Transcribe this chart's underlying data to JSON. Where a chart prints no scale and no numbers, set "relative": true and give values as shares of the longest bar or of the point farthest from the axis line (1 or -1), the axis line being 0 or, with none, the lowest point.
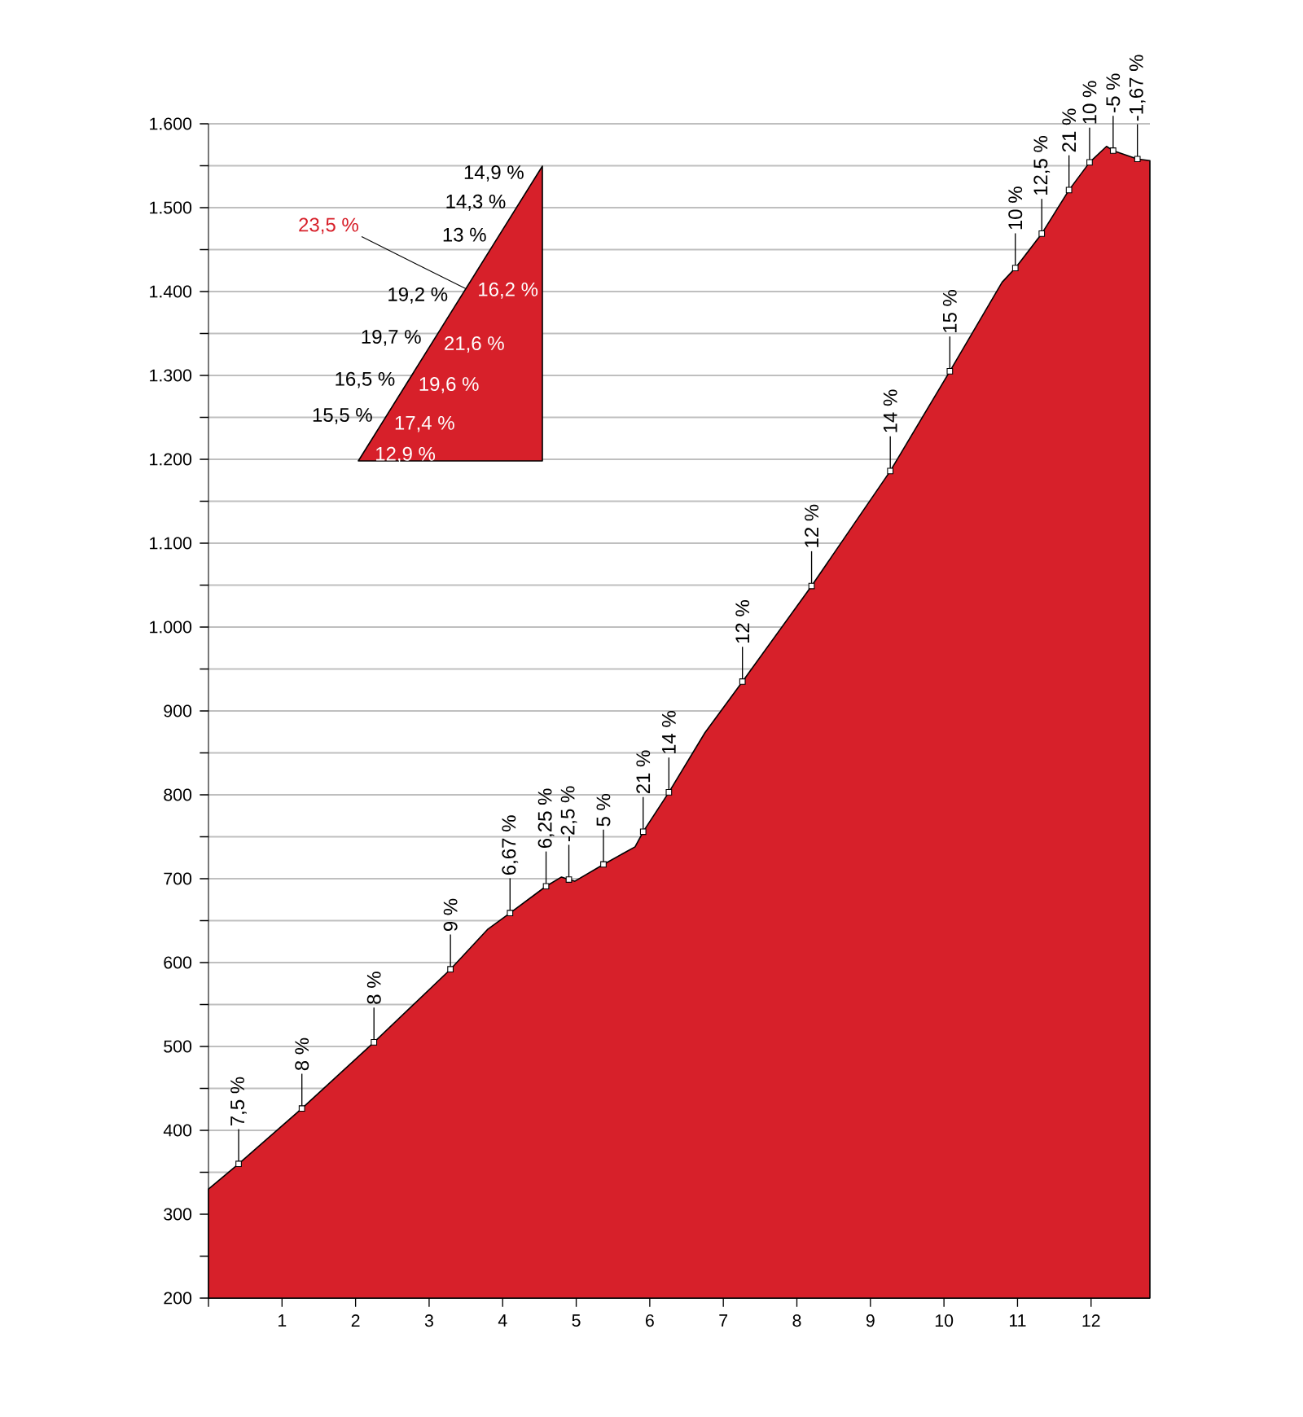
{
  "chart_data": [
    {
      "type": "area",
      "color": "#d7202a",
      "grid": "y",
      "xlim": [
        0,
        12.8
      ],
      "ylim": [
        200,
        1600
      ],
      "xticks": [
        {
          "value": 0,
          "label": null
        },
        1,
        2,
        3,
        4,
        5,
        6,
        7,
        8,
        9,
        10,
        11,
        12
      ],
      "yticks": [
        200,
        {
          "value": 250,
          "label": null
        },
        300,
        {
          "value": 350,
          "label": null
        },
        400,
        {
          "value": 450,
          "label": null
        },
        500,
        {
          "value": 550,
          "label": null
        },
        600,
        {
          "value": 650,
          "label": null
        },
        700,
        {
          "value": 750,
          "label": null
        },
        800,
        {
          "value": 850,
          "label": null
        },
        900,
        {
          "value": 950,
          "label": null
        },
        {
          "value": 1000,
          "label": "1.000"
        },
        {
          "value": 1050,
          "label": null
        },
        {
          "value": 1100,
          "label": "1.100"
        },
        {
          "value": 1150,
          "label": null
        },
        {
          "value": 1200,
          "label": "1.200"
        },
        {
          "value": 1250,
          "label": null
        },
        {
          "value": 1300,
          "label": "1.300"
        },
        {
          "value": 1350,
          "label": null
        },
        {
          "value": 1400,
          "label": "1.400"
        },
        {
          "value": 1450,
          "label": null
        },
        {
          "value": 1500,
          "label": "1.500"
        },
        {
          "value": 1550,
          "label": null
        },
        {
          "value": 1600,
          "label": "1.600"
        }
      ],
      "x": [
        0,
        0.41,
        1.27,
        2.25,
        3.29,
        3.8,
        4.1,
        4.59,
        4.8,
        4.9,
        4.98,
        5.37,
        5.8,
        5.91,
        6.26,
        6.75,
        7.26,
        8.2,
        9.27,
        10.08,
        10.79,
        10.97,
        11.33,
        11.7,
        11.98,
        12.21,
        12.3,
        12.63,
        12.8
      ],
      "values": [
        330,
        360,
        426,
        505,
        592,
        640,
        659,
        691,
        702,
        699,
        697,
        717,
        738,
        756,
        803,
        874,
        935,
        1049,
        1186,
        1305,
        1411,
        1428,
        1469,
        1521,
        1554,
        1573,
        1568,
        1558,
        1556
      ],
      "annotations": [
        {
          "text": "7,5 %",
          "x": 0.41,
          "y": 360
        },
        {
          "text": "8 %",
          "x": 1.27,
          "y": 426
        },
        {
          "text": "8 %",
          "x": 2.25,
          "y": 505
        },
        {
          "text": "9 %",
          "x": 3.29,
          "y": 592
        },
        {
          "text": "6,67 %",
          "x": 4.1,
          "y": 659
        },
        {
          "text": "6,25 %",
          "x": 4.59,
          "y": 691
        },
        {
          "text": "-2,5 %",
          "x": 4.9,
          "y": 699
        },
        {
          "text": "5 %",
          "x": 5.37,
          "y": 717
        },
        {
          "text": "21 %",
          "x": 5.91,
          "y": 756
        },
        {
          "text": "14 %",
          "x": 6.26,
          "y": 803
        },
        {
          "text": "12 %",
          "x": 7.26,
          "y": 935
        },
        {
          "text": "12 %",
          "x": 8.2,
          "y": 1049
        },
        {
          "text": "14 %",
          "x": 9.27,
          "y": 1186
        },
        {
          "text": "15 %",
          "x": 10.08,
          "y": 1305
        },
        {
          "text": "10 %",
          "x": 10.97,
          "y": 1428
        },
        {
          "text": "12,5 %",
          "x": 11.33,
          "y": 1469
        },
        {
          "text": "21 %",
          "x": 11.7,
          "y": 1521
        },
        {
          "text": "10 %",
          "x": 11.98,
          "y": 1554
        },
        {
          "text": "-5 %",
          "x": 12.3,
          "y": 1568
        },
        {
          "text": "-1,67 %",
          "x": 12.63,
          "y": 1558
        }
      ]
    },
    {
      "type": "area",
      "color": "#d7202a",
      "relative": true,
      "categories": [
        null,
        null
      ],
      "values": [
        0,
        1
      ],
      "annotations": [
        "12,9 %",
        "15,5 %",
        "17,4 %",
        "16,5 %",
        "19,6 %",
        "19,7 %",
        "21,6 %",
        "19,2 %",
        "16,2 %",
        "23,5 %",
        "13 %",
        "14,3 %",
        "14,9 %"
      ]
    }
  ]
}
